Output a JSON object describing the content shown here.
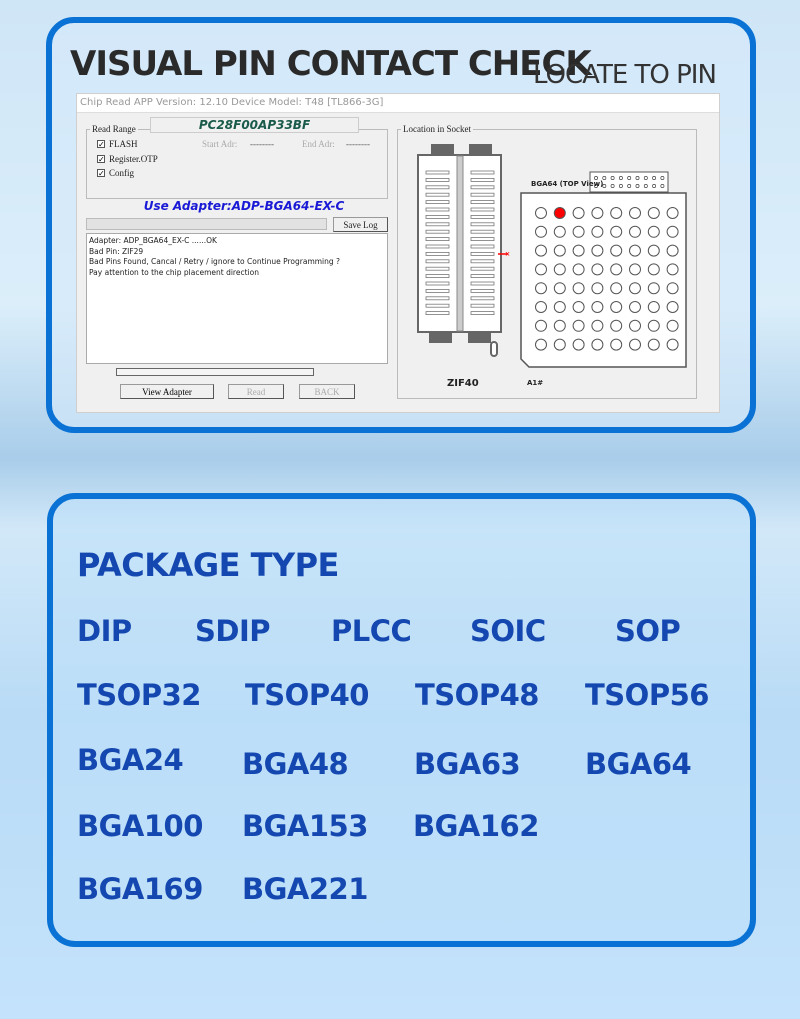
{
  "top_card": {
    "title": "VISUAL PIN CONTACT CHECK",
    "subtitle": "LOCATE TO PIN"
  },
  "app": {
    "title_bar": "Chip Read   APP Version: 12.10 Device Model: T48 [TL866-3G]",
    "chip_name": "PC28F00AP33BF",
    "read_range": {
      "legend": "Read Range",
      "options": [
        {
          "label": "FLASH",
          "checked": true
        },
        {
          "label": "Register.OTP",
          "checked": true
        },
        {
          "label": "Config",
          "checked": true
        }
      ],
      "start_label": "Start Adr:",
      "start_value": "--------",
      "end_label": "End Adr:",
      "end_value": "--------"
    },
    "adapter_notice": "Use Adapter:ADP-BGA64-EX-C",
    "save_log": "Save Log",
    "log": [
      "Adapter:  ADP_BGA64_EX-C  ......OK",
      "Bad Pin: ZIF29",
      "Bad Pins Found, Cancal / Retry / ignore to Continue Programming ?",
      "Pay attention to the chip placement direction"
    ],
    "buttons": {
      "view_adapter": "View Adapter",
      "read": "Read",
      "back": "BACK"
    },
    "socket": {
      "legend": "Location in Socket",
      "zif_label": "ZIF40",
      "bga_label": "BGA64 (TOP View)",
      "a1_label": "A1#",
      "bad_pin": "ZIF29",
      "bga_rows": 8,
      "bga_cols": 8,
      "bad_ball": {
        "row": 1,
        "col": 2
      },
      "colors": {
        "bad": "#ff0000"
      }
    }
  },
  "bottom_card": {
    "title": "PACKAGE TYPE",
    "packages": [
      "DIP",
      "SDIP",
      "PLCC",
      "SOIC",
      "SOP",
      "TSOP32",
      "TSOP40",
      "TSOP48",
      "TSOP56",
      "BGA24",
      "BGA48",
      "BGA63",
      "BGA64",
      "BGA100",
      "BGA153",
      "BGA162",
      "BGA169",
      "BGA221"
    ]
  },
  "colors": {
    "accent": "#0a72d4",
    "package_text": "#1448b0",
    "adapter_text": "#1a1ad6",
    "chip_text": "#1a5a4a"
  }
}
